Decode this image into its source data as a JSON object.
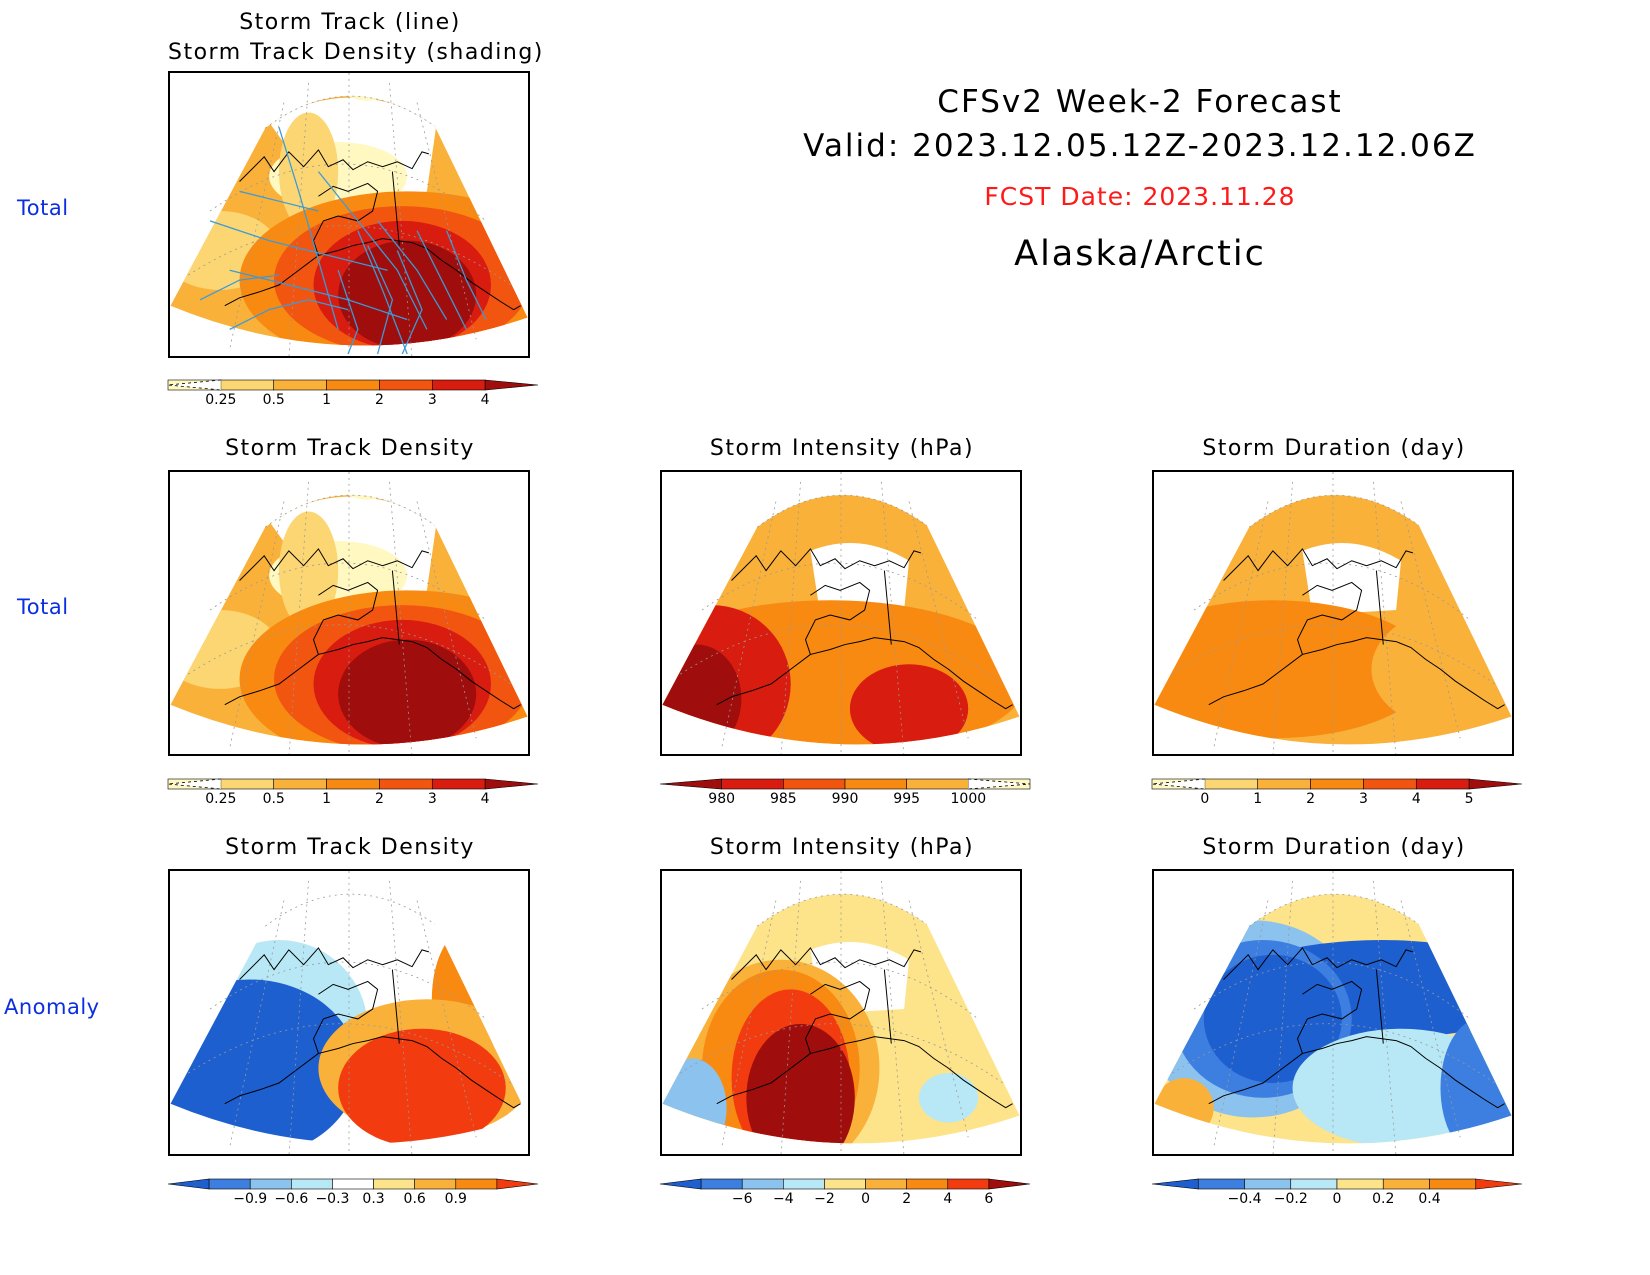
{
  "header": {
    "title_line1": "CFSv2 Week-2 Forecast",
    "title_line2": "Valid: 2023.12.05.12Z-2023.12.12.06Z",
    "fcst_date": "FCST Date: 2023.11.28",
    "region": "Alaska/Arctic",
    "fcst_color": "#ff1a1a"
  },
  "row_labels": {
    "row1": "Total",
    "row2": "Total",
    "row3": "Anomaly"
  },
  "panels": {
    "p1": {
      "title1": "Storm Track (line)",
      "title2": "Storm Track Density (shading)"
    },
    "p2": {
      "title": "Storm Track Density"
    },
    "p3": {
      "title": "Storm Intensity (hPa)"
    },
    "p4": {
      "title": "Storm Duration (day)"
    },
    "p5": {
      "title": "Storm Track Density"
    },
    "p6": {
      "title": "Storm Intensity (hPa)"
    },
    "p7": {
      "title": "Storm Duration (day)"
    }
  },
  "chart_data": [
    {
      "type": "heatmap",
      "panel": "p1",
      "title": "Storm Track (line) / Storm Track Density (shading)",
      "colorbar": {
        "ticks": [
          "0.25",
          "0.5",
          "1",
          "2",
          "3",
          "4"
        ],
        "colors": [
          "#fff8c0",
          "#fcd672",
          "#f9b13a",
          "#f88a12",
          "#f25510",
          "#d91c10",
          "#a00d0d"
        ],
        "extend_low_dashed": true
      },
      "overlay": "storm tracks (blue lines)"
    },
    {
      "type": "heatmap",
      "panel": "p2",
      "title": "Storm Track Density",
      "colorbar": {
        "ticks": [
          "0.25",
          "0.5",
          "1",
          "2",
          "3",
          "4"
        ],
        "colors": [
          "#fff8c0",
          "#fcd672",
          "#f9b13a",
          "#f88a12",
          "#f25510",
          "#d91c10",
          "#a00d0d"
        ],
        "extend_low_dashed": true
      }
    },
    {
      "type": "heatmap",
      "panel": "p3",
      "title": "Storm Intensity (hPa)",
      "colorbar": {
        "ticks": [
          "980",
          "985",
          "990",
          "995",
          "1000"
        ],
        "colors": [
          "#a00d0d",
          "#d91c10",
          "#f25510",
          "#f88a12",
          "#f9b13a",
          "#fff8c0"
        ],
        "extend_high_dashed": true
      }
    },
    {
      "type": "heatmap",
      "panel": "p4",
      "title": "Storm Duration (day)",
      "colorbar": {
        "ticks": [
          "0",
          "1",
          "2",
          "3",
          "4",
          "5"
        ],
        "colors": [
          "#fff8c0",
          "#fcd672",
          "#f9b13a",
          "#f88a12",
          "#f25510",
          "#d91c10",
          "#a00d0d"
        ],
        "extend_low_dashed": true
      }
    },
    {
      "type": "heatmap",
      "panel": "p5",
      "title": "Storm Track Density",
      "colorbar": {
        "ticks": [
          "-0.9",
          "-0.6",
          "-0.3",
          "0.3",
          "0.6",
          "0.9"
        ],
        "colors": [
          "#1e5fd0",
          "#3c7fe0",
          "#8cc2ee",
          "#b8e8f5",
          "#ffffff",
          "#fde38a",
          "#f9b13a",
          "#f88a12",
          "#f23c10"
        ]
      }
    },
    {
      "type": "heatmap",
      "panel": "p6",
      "title": "Storm Intensity (hPa)",
      "colorbar": {
        "ticks": [
          "-6",
          "-4",
          "-2",
          "0",
          "2",
          "4",
          "6"
        ],
        "colors": [
          "#1e5fd0",
          "#3c7fe0",
          "#8cc2ee",
          "#b8e8f5",
          "#fde38a",
          "#f9b13a",
          "#f88a12",
          "#f23c10",
          "#a00d0d"
        ]
      }
    },
    {
      "type": "heatmap",
      "panel": "p7",
      "title": "Storm Duration (day)",
      "colorbar": {
        "ticks": [
          "-0.4",
          "-0.2",
          "0",
          "0.2",
          "0.4"
        ],
        "colors": [
          "#1e5fd0",
          "#3c7fe0",
          "#8cc2ee",
          "#b8e8f5",
          "#fde38a",
          "#f9b13a",
          "#f88a12",
          "#f23c10"
        ]
      }
    }
  ]
}
